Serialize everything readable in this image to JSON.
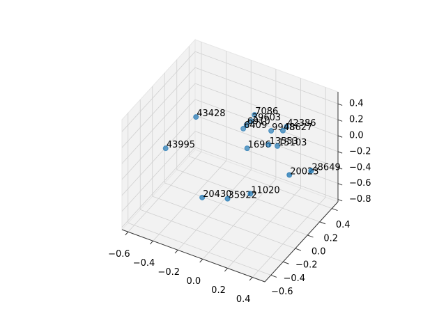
{
  "chart_data": {
    "type": "scatter3d",
    "labels": [
      "43428",
      "43995",
      "7086",
      "39603",
      "6910",
      "6409",
      "9948",
      "42386",
      "48627",
      "1696",
      "13553",
      "15103",
      "20023",
      "28649",
      "20430",
      "35922",
      "11020"
    ],
    "x": [
      -0.28,
      -0.47,
      0.0,
      -0.01,
      -0.05,
      -0.11,
      0.07,
      0.14,
      0.14,
      -0.04,
      0.07,
      0.13,
      0.3,
      0.47,
      -0.22,
      -0.06,
      0.05
    ],
    "y": [
      -0.24,
      -0.35,
      0.15,
      0.12,
      0.12,
      0.19,
      0.28,
      0.39,
      0.33,
      0.11,
      0.24,
      0.26,
      0.11,
      0.12,
      -0.26,
      -0.17,
      -0.02
    ],
    "z": [
      0.41,
      0.0,
      0.27,
      0.21,
      0.14,
      0.0,
      0.0,
      0.0,
      0.0,
      -0.14,
      -0.14,
      -0.14,
      -0.28,
      -0.14,
      -0.55,
      -0.55,
      -0.55
    ],
    "color": "#1f77b4",
    "xlim": [
      -0.65,
      0.5
    ],
    "ylim": [
      -0.7,
      0.5
    ],
    "zlim": [
      -0.83,
      0.55
    ],
    "xticks": [
      {
        "value": -0.6,
        "label": "−0.6"
      },
      {
        "value": -0.4,
        "label": "−0.4"
      },
      {
        "value": -0.2,
        "label": "−0.2"
      },
      {
        "value": 0,
        "label": "0.0"
      },
      0.2,
      0.4
    ],
    "yticks": [
      {
        "value": -0.6,
        "label": "−0.6"
      },
      {
        "value": -0.4,
        "label": "−0.4"
      },
      {
        "value": -0.2,
        "label": "−0.2"
      },
      {
        "value": 0,
        "label": "0.0"
      },
      0.2,
      0.4
    ],
    "zticks": [
      {
        "value": -0.8,
        "label": "−0.8"
      },
      {
        "value": -0.6,
        "label": "−0.6"
      },
      {
        "value": -0.4,
        "label": "−0.4"
      },
      {
        "value": -0.2,
        "label": "−0.2"
      },
      {
        "value": 0,
        "label": "0.0"
      },
      0.2,
      0.4
    ],
    "grid": true
  }
}
